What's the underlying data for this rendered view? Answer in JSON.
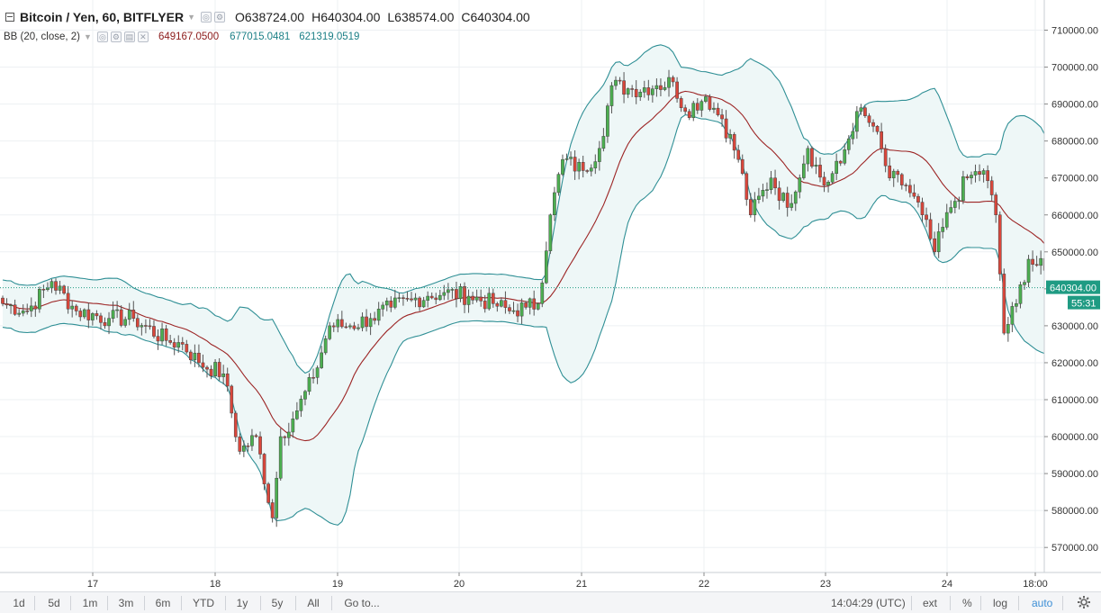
{
  "legend": {
    "symbol": "Bitcoin / Yen, 60, BITFLYER",
    "open_label": "O",
    "open": "638724.00",
    "high_label": "H",
    "high": "640304.00",
    "low_label": "L",
    "low": "638574.00",
    "close_label": "C",
    "close": "640304.00"
  },
  "indicator": {
    "label": "BB (20, close, 2)",
    "basis": "649167.0500",
    "upper": "677015.0481",
    "lower": "621319.0519"
  },
  "price_axis": {
    "ticks": [
      "710000.00",
      "700000.00",
      "690000.00",
      "680000.00",
      "670000.00",
      "660000.00",
      "650000.00",
      "640000.00",
      "630000.00",
      "620000.00",
      "610000.00",
      "600000.00",
      "590000.00",
      "580000.00",
      "570000.00"
    ],
    "current_price": "640304.00",
    "countdown": "55:31"
  },
  "time_axis": {
    "ticks": [
      "17",
      "18",
      "19",
      "20",
      "21",
      "22",
      "23",
      "24",
      "18:00"
    ]
  },
  "bottom_bar": {
    "timeframes": [
      "1d",
      "5d",
      "1m",
      "3m",
      "6m",
      "YTD",
      "1y",
      "5y",
      "All"
    ],
    "goto": "Go to...",
    "clock": "14:04:29 (UTC)",
    "ext": "ext",
    "percent": "%",
    "log": "log",
    "auto": "auto"
  },
  "colors": {
    "up": "#4caf50",
    "down": "#d9463b",
    "basis": "#9c2424",
    "band": "#2f8f95",
    "band_fill": "#eef7f7",
    "price_line": "#1f9b83"
  },
  "chart_data": {
    "type": "candlestick",
    "symbol": "Bitcoin / Yen",
    "interval": "60",
    "ylim": [
      565000,
      715000
    ],
    "x_ticks": [
      "17",
      "18",
      "19",
      "20",
      "21",
      "22",
      "23",
      "24",
      "18:00"
    ],
    "indicator_values": {
      "basis": 649167.05,
      "upper": 677015.0481,
      "lower": 621319.0519
    },
    "anchors": [
      {
        "i": 0,
        "c": 636000
      },
      {
        "i": 6,
        "c": 634000
      },
      {
        "i": 12,
        "c": 642000
      },
      {
        "i": 18,
        "c": 634000
      },
      {
        "i": 26,
        "c": 632000
      },
      {
        "i": 32,
        "c": 632000
      },
      {
        "i": 40,
        "c": 626000
      },
      {
        "i": 44,
        "c": 625000
      },
      {
        "i": 48,
        "c": 620000
      },
      {
        "i": 54,
        "c": 617000
      },
      {
        "i": 58,
        "c": 596000
      },
      {
        "i": 62,
        "c": 600000
      },
      {
        "i": 66,
        "c": 578000
      },
      {
        "i": 68,
        "c": 600000
      },
      {
        "i": 72,
        "c": 607000
      },
      {
        "i": 76,
        "c": 616000
      },
      {
        "i": 80,
        "c": 630000
      },
      {
        "i": 85,
        "c": 630000
      },
      {
        "i": 90,
        "c": 632000
      },
      {
        "i": 95,
        "c": 635000
      },
      {
        "i": 100,
        "c": 637000
      },
      {
        "i": 104,
        "c": 638000
      },
      {
        "i": 108,
        "c": 639000
      },
      {
        "i": 114,
        "c": 638000
      },
      {
        "i": 120,
        "c": 636000
      },
      {
        "i": 124,
        "c": 634000
      },
      {
        "i": 128,
        "c": 635000
      },
      {
        "i": 131,
        "c": 636000
      },
      {
        "i": 134,
        "c": 660000
      },
      {
        "i": 137,
        "c": 675000
      },
      {
        "i": 142,
        "c": 672000
      },
      {
        "i": 146,
        "c": 678000
      },
      {
        "i": 149,
        "c": 695000
      },
      {
        "i": 154,
        "c": 694000
      },
      {
        "i": 160,
        "c": 695000
      },
      {
        "i": 164,
        "c": 696000
      },
      {
        "i": 167,
        "c": 688000
      },
      {
        "i": 172,
        "c": 692000
      },
      {
        "i": 176,
        "c": 686000
      },
      {
        "i": 180,
        "c": 675000
      },
      {
        "i": 183,
        "c": 660000
      },
      {
        "i": 188,
        "c": 670000
      },
      {
        "i": 192,
        "c": 662000
      },
      {
        "i": 197,
        "c": 678000
      },
      {
        "i": 201,
        "c": 668000
      },
      {
        "i": 205,
        "c": 674000
      },
      {
        "i": 209,
        "c": 688000
      },
      {
        "i": 213,
        "c": 684000
      },
      {
        "i": 217,
        "c": 670000
      },
      {
        "i": 221,
        "c": 668000
      },
      {
        "i": 225,
        "c": 660000
      },
      {
        "i": 228,
        "c": 650000
      },
      {
        "i": 232,
        "c": 662000
      },
      {
        "i": 236,
        "c": 670000
      },
      {
        "i": 240,
        "c": 672000
      },
      {
        "i": 243,
        "c": 660000
      },
      {
        "i": 245,
        "c": 628000
      },
      {
        "i": 248,
        "c": 636000
      },
      {
        "i": 251,
        "c": 648000
      },
      {
        "i": 255,
        "c": 645000
      },
      {
        "i": 259,
        "c": 640304
      }
    ]
  }
}
